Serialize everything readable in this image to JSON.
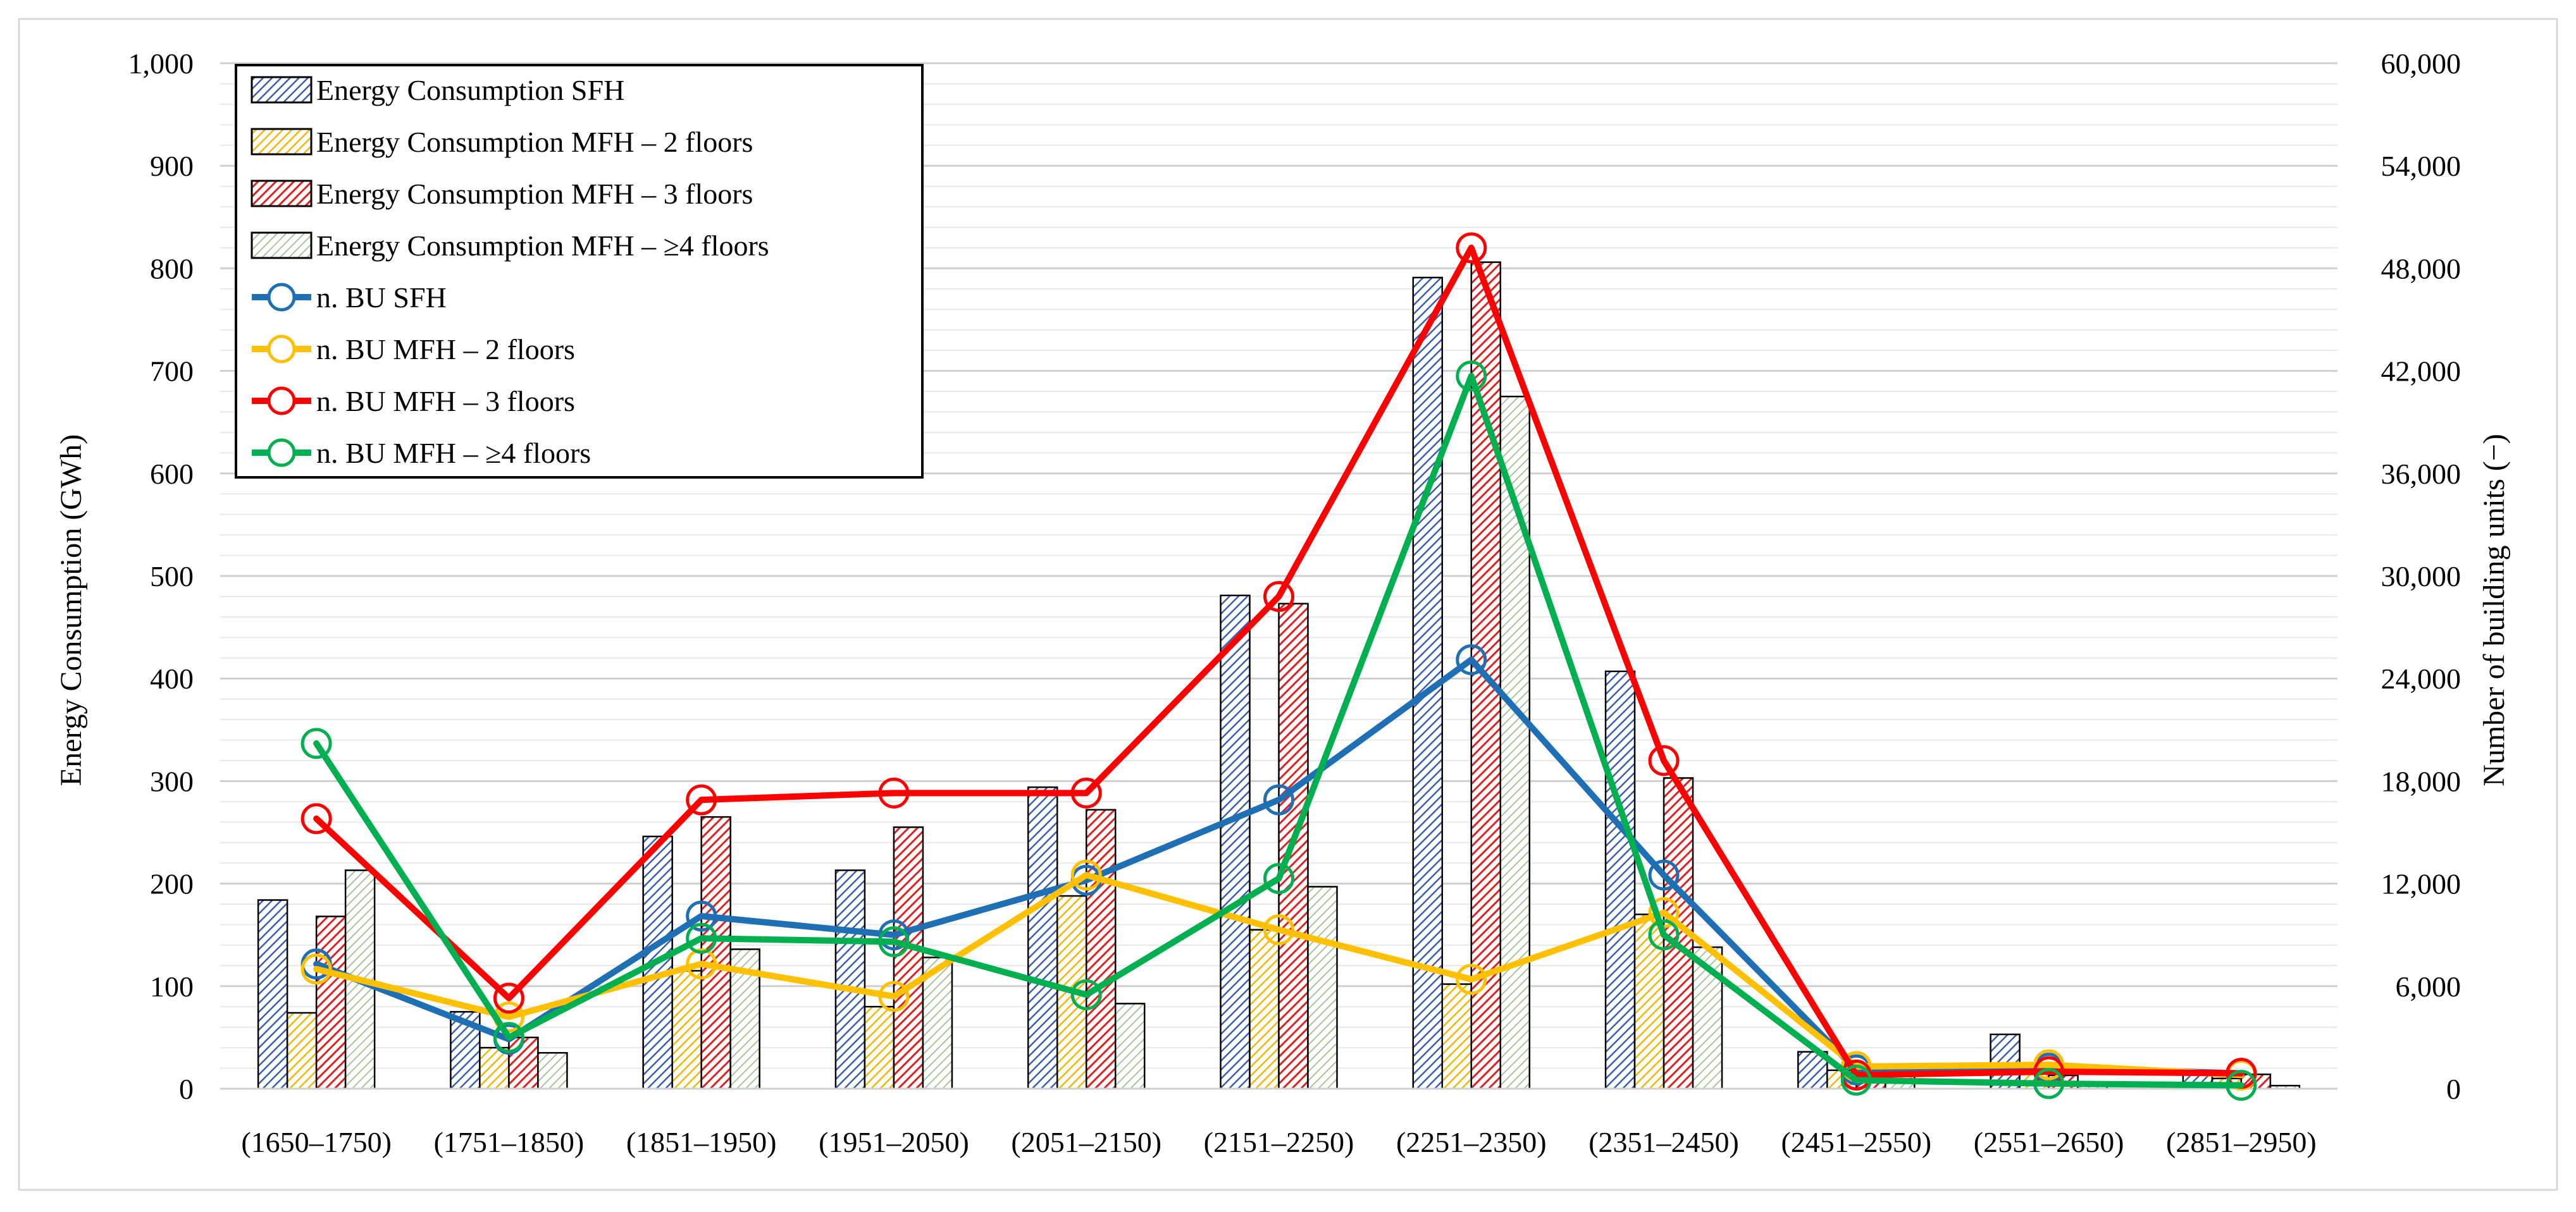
{
  "chart_data": {
    "type": "bar+line",
    "title": "",
    "xlabel": "",
    "ylabel": "Energy Consumption (GWh)",
    "y2label": "Number of building units (−)",
    "ylim": [
      0,
      1000
    ],
    "y2lim": [
      0,
      60000
    ],
    "yticks": [
      "0",
      "100",
      "200",
      "300",
      "400",
      "500",
      "600",
      "700",
      "800",
      "900",
      "1,000"
    ],
    "y2ticks": [
      "0",
      "6,000",
      "12,000",
      "18,000",
      "24,000",
      "30,000",
      "36,000",
      "42,000",
      "48,000",
      "54,000",
      "60,000"
    ],
    "grid": true,
    "legend_position": "top-left",
    "categories": [
      "(1650–1750)",
      "(1751–1850)",
      "(1851–1950)",
      "(1951–2050)",
      "(2051–2150)",
      "(2151–2250)",
      "(2251–2350)",
      "(2351–2450)",
      "(2451–2550)",
      "(2551–2650)",
      "(2851–2950)"
    ],
    "bar_series": [
      {
        "name": "Energy Consumption SFH",
        "color": "#2F4F9F",
        "pattern": "blue",
        "values": [
          184,
          75,
          246,
          213,
          294,
          481,
          791,
          407,
          36,
          53,
          18
        ]
      },
      {
        "name": "Energy Consumption MFH – 2 floors",
        "color": "#F2B705",
        "pattern": "yellow",
        "values": [
          74,
          40,
          115,
          80,
          188,
          155,
          102,
          170,
          18,
          15,
          10
        ]
      },
      {
        "name": "Energy Consumption MFH – 3 floors",
        "color": "#E02020",
        "pattern": "red",
        "values": [
          168,
          50,
          265,
          255,
          272,
          473,
          806,
          303,
          15,
          13,
          14
        ]
      },
      {
        "name": "Energy Consumption MFH – ≥4 floors",
        "color": "#7A9A5A",
        "pattern": "green",
        "values": [
          213,
          35,
          136,
          128,
          83,
          197,
          675,
          138,
          12,
          6,
          3
        ]
      }
    ],
    "line_series": [
      {
        "name": "n. BU SFH",
        "color": "#1F6FB5",
        "values": [
          7300,
          2900,
          10100,
          9000,
          12200,
          16900,
          25100,
          12500,
          1100,
          1200,
          900
        ]
      },
      {
        "name": "n. BU MFH – 2 floors",
        "color": "#FFC000",
        "values": [
          7000,
          4200,
          7300,
          5400,
          12500,
          9300,
          6400,
          10300,
          1300,
          1400,
          800
        ]
      },
      {
        "name": "n. BU MFH – 3 floors",
        "color": "#FF0000",
        "values": [
          15800,
          5300,
          16900,
          17300,
          17300,
          28800,
          49200,
          19200,
          800,
          1000,
          900
        ]
      },
      {
        "name": "n. BU MFH – ≥4 floors",
        "color": "#00B050",
        "values": [
          20200,
          3000,
          8800,
          8600,
          5500,
          12300,
          41700,
          9000,
          500,
          300,
          200
        ]
      }
    ]
  }
}
